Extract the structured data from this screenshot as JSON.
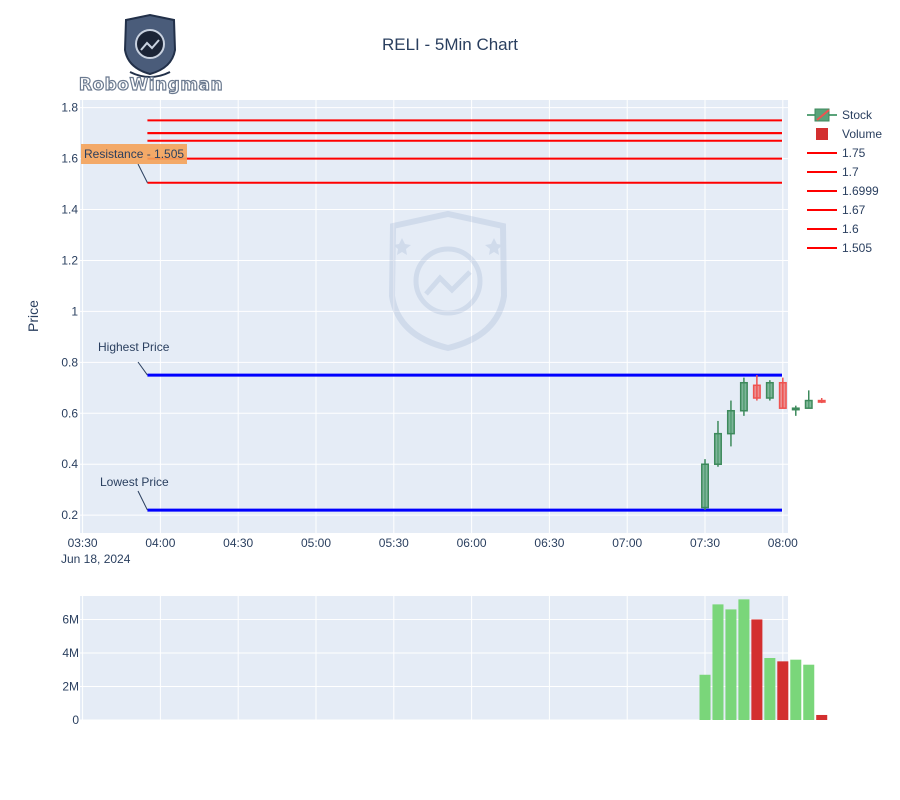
{
  "brand": {
    "name": "RoboWingman"
  },
  "colors": {
    "up": "#7ad67a",
    "up_body": "#5aa37a",
    "down": "#ef5350",
    "down_vol": "#d32f2f",
    "level": "#ff0000",
    "band": "#0000ff",
    "plot_bg": "#e5ecf6",
    "text": "#2a3f5f",
    "annotation_bg": "#f4a259"
  },
  "chart_data": {
    "type": "candlestick",
    "title": "RELI - 5Min Chart",
    "ylabel": "Price",
    "date_label": "Jun 18, 2024",
    "price_axis": {
      "range": [
        0.13,
        1.83
      ],
      "ticks": [
        "0.2",
        "0.4",
        "0.6",
        "0.8",
        "1",
        "1.2",
        "1.4",
        "1.6",
        "1.8"
      ],
      "tick_values": [
        0.2,
        0.4,
        0.6,
        0.8,
        1.0,
        1.2,
        1.4,
        1.6,
        1.8
      ]
    },
    "time_axis": {
      "range_min": [
        209,
        482
      ],
      "tick_labels": [
        "03:30",
        "04:00",
        "04:30",
        "05:00",
        "05:30",
        "06:00",
        "06:30",
        "07:00",
        "07:30",
        "08:00"
      ],
      "tick_minutes": [
        210,
        240,
        270,
        300,
        330,
        360,
        390,
        420,
        450,
        480
      ]
    },
    "volume_axis": {
      "range": [
        0,
        7400000
      ],
      "ticks": [
        "0",
        "2M",
        "4M",
        "6M"
      ],
      "tick_values": [
        0,
        2000000,
        4000000,
        6000000
      ]
    },
    "candles": [
      {
        "t": 450,
        "o": 0.23,
        "h": 0.42,
        "l": 0.22,
        "c": 0.4,
        "v": 2700000
      },
      {
        "t": 455,
        "o": 0.4,
        "h": 0.57,
        "l": 0.39,
        "c": 0.52,
        "v": 6900000
      },
      {
        "t": 460,
        "o": 0.52,
        "h": 0.65,
        "l": 0.47,
        "c": 0.61,
        "v": 6600000
      },
      {
        "t": 465,
        "o": 0.61,
        "h": 0.74,
        "l": 0.59,
        "c": 0.72,
        "v": 7200000
      },
      {
        "t": 470,
        "o": 0.71,
        "h": 0.75,
        "l": 0.65,
        "c": 0.66,
        "v": 6000000
      },
      {
        "t": 475,
        "o": 0.66,
        "h": 0.73,
        "l": 0.65,
        "c": 0.72,
        "v": 3700000
      },
      {
        "t": 480,
        "o": 0.72,
        "h": 0.74,
        "l": 0.62,
        "c": 0.62,
        "v": 3500000
      },
      {
        "t": 485,
        "o": 0.62,
        "h": 0.63,
        "l": 0.59,
        "c": 0.62,
        "v": 3600000
      },
      {
        "t": 490,
        "o": 0.62,
        "h": 0.69,
        "l": 0.62,
        "c": 0.65,
        "v": 3300000
      },
      {
        "t": 495,
        "o": 0.65,
        "h": 0.66,
        "l": 0.64,
        "c": 0.645,
        "v": 300000
      }
    ],
    "levels": [
      {
        "name": "1.75",
        "value": 1.75
      },
      {
        "name": "1.7",
        "value": 1.7
      },
      {
        "name": "1.6999",
        "value": 1.6999
      },
      {
        "name": "1.67",
        "value": 1.67
      },
      {
        "name": "1.6",
        "value": 1.6
      },
      {
        "name": "1.505",
        "value": 1.505
      }
    ],
    "lines_start_min": 235,
    "highest_price": 0.75,
    "lowest_price": 0.22,
    "annotations": {
      "resistance": "Resistance - 1.505",
      "highest": "Highest Price",
      "lowest": "Lowest Price"
    },
    "legend": [
      {
        "name": "Stock",
        "kind": "candle"
      },
      {
        "name": "Volume",
        "kind": "square"
      },
      {
        "name": "1.75",
        "kind": "line"
      },
      {
        "name": "1.7",
        "kind": "line"
      },
      {
        "name": "1.6999",
        "kind": "line"
      },
      {
        "name": "1.67",
        "kind": "line"
      },
      {
        "name": "1.6",
        "kind": "line"
      },
      {
        "name": "1.505",
        "kind": "line"
      }
    ]
  }
}
